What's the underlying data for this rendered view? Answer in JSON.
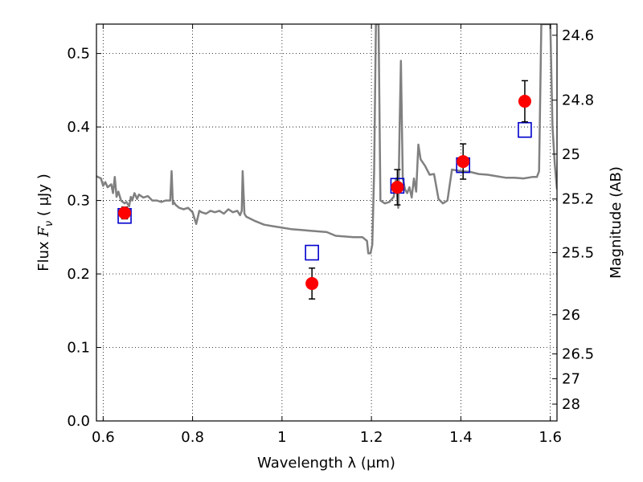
{
  "chart_data": {
    "type": "scatter",
    "xlabel": "Wavelength  λ (μm)",
    "ylabel": {
      "prefix": "Flux  ",
      "symbol": "F",
      "subscript": "ν",
      "unit": "  ( μJy )"
    },
    "y2label": "Magnitude (AB)",
    "xlim": [
      0.585,
      1.615
    ],
    "ylim": [
      0.0,
      0.54
    ],
    "grid": true,
    "x_ticks": [
      0.6,
      0.8,
      1.0,
      1.2,
      1.4,
      1.6
    ],
    "x_tick_labels": [
      "0.6",
      "0.8",
      "1",
      "1.2",
      "1.4",
      "1.6"
    ],
    "y_ticks": [
      0.0,
      0.1,
      0.2,
      0.3,
      0.4,
      0.5
    ],
    "y_tick_labels": [
      "0.0",
      "0.1",
      "0.2",
      "0.3",
      "0.4",
      "0.5"
    ],
    "y2_tick_labels": [
      "24.6",
      "24.8",
      "25",
      "25.2",
      "25.5",
      "26",
      "26.5",
      "27",
      "28"
    ],
    "y2_tick_mags": [
      24.6,
      24.8,
      25.0,
      25.2,
      25.5,
      26.0,
      26.5,
      27.0,
      28.0
    ],
    "observed": {
      "color": "#ff0000",
      "points": [
        {
          "x": 0.648,
          "y": 0.283,
          "err": 0.008
        },
        {
          "x": 1.067,
          "y": 0.187,
          "err": 0.021
        },
        {
          "x": 1.258,
          "y": 0.318,
          "err": 0.024
        },
        {
          "x": 1.405,
          "y": 0.353,
          "err": 0.024
        },
        {
          "x": 1.543,
          "y": 0.435,
          "err": 0.028
        }
      ]
    },
    "model_photometry": {
      "color": "#0000cc",
      "points": [
        {
          "x": 0.648,
          "y": 0.279
        },
        {
          "x": 1.067,
          "y": 0.229
        },
        {
          "x": 1.258,
          "y": 0.32
        },
        {
          "x": 1.405,
          "y": 0.348
        },
        {
          "x": 1.543,
          "y": 0.396
        }
      ]
    },
    "spectrum": {
      "color": "#808080",
      "x": [
        0.585,
        0.595,
        0.6,
        0.605,
        0.61,
        0.618,
        0.622,
        0.626,
        0.63,
        0.634,
        0.64,
        0.648,
        0.652,
        0.658,
        0.662,
        0.665,
        0.67,
        0.676,
        0.68,
        0.69,
        0.7,
        0.71,
        0.72,
        0.73,
        0.74,
        0.75,
        0.753,
        0.756,
        0.758,
        0.762,
        0.77,
        0.78,
        0.79,
        0.8,
        0.808,
        0.812,
        0.815,
        0.82,
        0.83,
        0.84,
        0.85,
        0.86,
        0.87,
        0.88,
        0.89,
        0.9,
        0.906,
        0.91,
        0.912,
        0.916,
        0.92,
        0.94,
        0.96,
        0.98,
        1.0,
        1.02,
        1.04,
        1.06,
        1.08,
        1.1,
        1.12,
        1.14,
        1.16,
        1.18,
        1.19,
        1.193,
        1.198,
        1.202,
        1.206,
        1.21,
        1.214,
        1.216,
        1.22,
        1.23,
        1.24,
        1.25,
        1.255,
        1.26,
        1.263,
        1.266,
        1.27,
        1.275,
        1.28,
        1.285,
        1.29,
        1.295,
        1.3,
        1.305,
        1.31,
        1.32,
        1.33,
        1.34,
        1.35,
        1.36,
        1.37,
        1.38,
        1.39,
        1.4,
        1.42,
        1.44,
        1.46,
        1.48,
        1.5,
        1.52,
        1.54,
        1.56,
        1.57,
        1.575,
        1.58,
        1.59,
        1.6,
        1.605,
        1.61,
        1.615
      ],
      "y": [
        0.333,
        0.33,
        0.32,
        0.325,
        0.318,
        0.322,
        0.31,
        0.332,
        0.305,
        0.312,
        0.3,
        0.296,
        0.298,
        0.292,
        0.305,
        0.3,
        0.31,
        0.302,
        0.308,
        0.304,
        0.306,
        0.3,
        0.3,
        0.298,
        0.3,
        0.3,
        0.34,
        0.295,
        0.298,
        0.294,
        0.29,
        0.288,
        0.29,
        0.284,
        0.268,
        0.278,
        0.286,
        0.284,
        0.282,
        0.286,
        0.284,
        0.286,
        0.282,
        0.288,
        0.284,
        0.286,
        0.28,
        0.286,
        0.34,
        0.282,
        0.278,
        0.272,
        0.267,
        0.265,
        0.263,
        0.261,
        0.26,
        0.259,
        0.258,
        0.257,
        0.252,
        0.251,
        0.25,
        0.25,
        0.245,
        0.228,
        0.228,
        0.24,
        0.34,
        0.54,
        0.54,
        0.54,
        0.3,
        0.296,
        0.298,
        0.305,
        0.33,
        0.29,
        0.4,
        0.49,
        0.33,
        0.315,
        0.31,
        0.318,
        0.304,
        0.33,
        0.312,
        0.376,
        0.356,
        0.347,
        0.335,
        0.336,
        0.302,
        0.296,
        0.3,
        0.342,
        0.341,
        0.34,
        0.339,
        0.336,
        0.335,
        0.333,
        0.331,
        0.331,
        0.33,
        0.332,
        0.332,
        0.34,
        0.54,
        0.54,
        0.54,
        0.4,
        0.35,
        0.315
      ]
    }
  }
}
